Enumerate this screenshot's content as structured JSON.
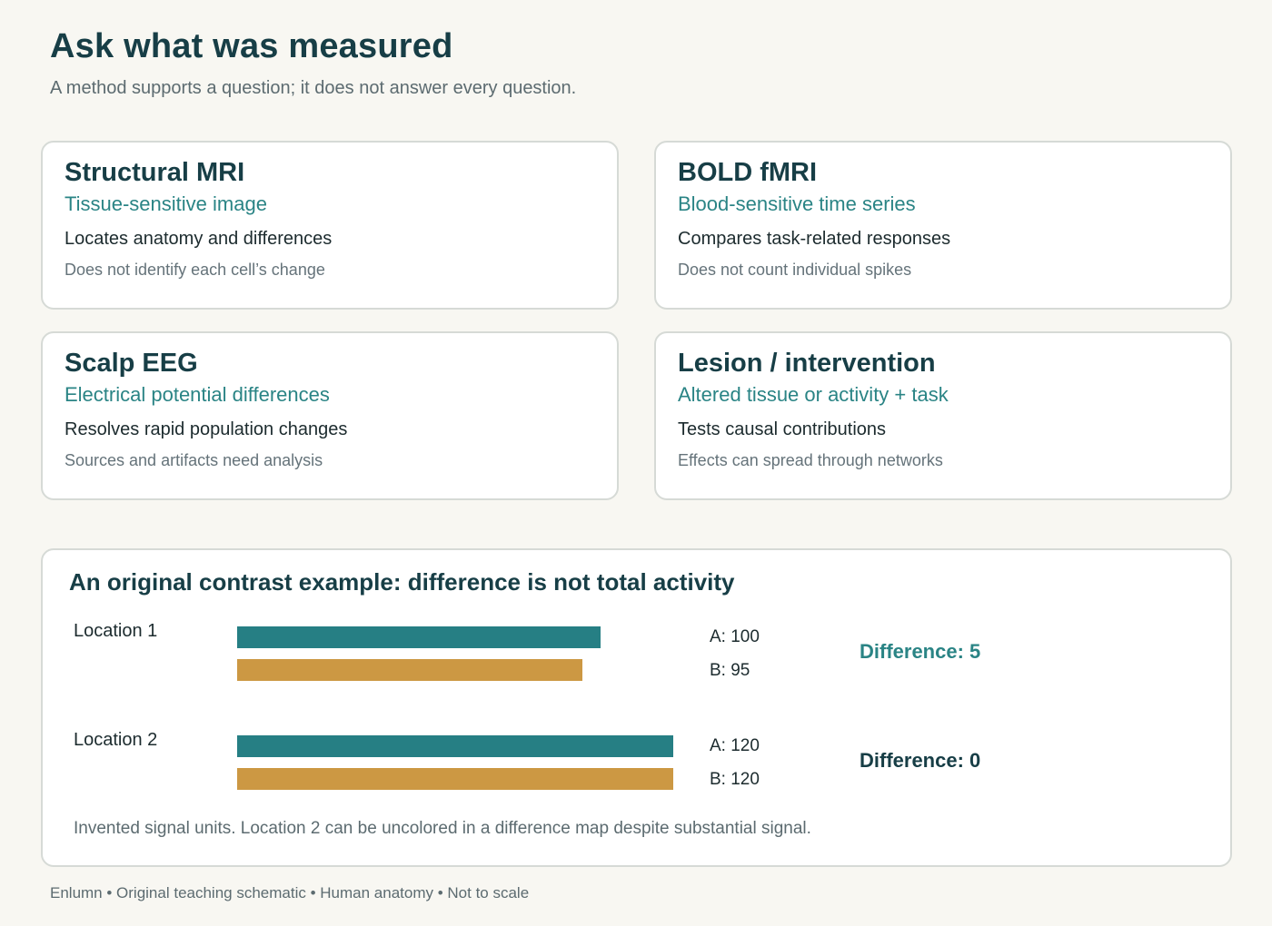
{
  "header": {
    "title": "Ask what was measured",
    "subtitle": "A method supports a question; it does not answer every question."
  },
  "cards": [
    {
      "title": "Structural MRI",
      "measure": "Tissue-sensitive image",
      "strength": "Locates anatomy and differences",
      "limit": "Does not identify each cell’s change"
    },
    {
      "title": "BOLD fMRI",
      "measure": "Blood-sensitive time series",
      "strength": "Compares task-related responses",
      "limit": "Does not count individual spikes"
    },
    {
      "title": "Scalp EEG",
      "measure": "Electrical potential differences",
      "strength": "Resolves rapid population changes",
      "limit": "Sources and artifacts need analysis"
    },
    {
      "title": "Lesion / intervention",
      "measure": "Altered tissue or activity + task",
      "strength": "Tests causal contributions",
      "limit": "Effects can spread through networks"
    }
  ],
  "example": {
    "title": "An original contrast example: difference is not total activity",
    "locations": [
      {
        "label": "Location 1",
        "a_label": "A: 100",
        "b_label": "B: 95",
        "a_value": 100,
        "b_value": 95,
        "diff_label": "Difference: 5"
      },
      {
        "label": "Location 2",
        "a_label": "A: 120",
        "b_label": "B: 120",
        "a_value": 120,
        "b_value": 120,
        "diff_label": "Difference: 0"
      }
    ],
    "note": "Invented signal units. Location 2 can be uncolored in a difference map despite substantial signal."
  },
  "chart_data": {
    "type": "bar",
    "categories": [
      "Location 1",
      "Location 2"
    ],
    "series": [
      {
        "name": "A",
        "values": [
          100,
          120
        ]
      },
      {
        "name": "B",
        "values": [
          95,
          120
        ]
      }
    ]
  },
  "colors": {
    "series_a": "#267f84",
    "series_b": "#cc9843",
    "accent": "#2a8485",
    "heading": "#173e46"
  },
  "footer": {
    "text": "Enlumn • Original teaching schematic • Human anatomy • Not to scale"
  }
}
